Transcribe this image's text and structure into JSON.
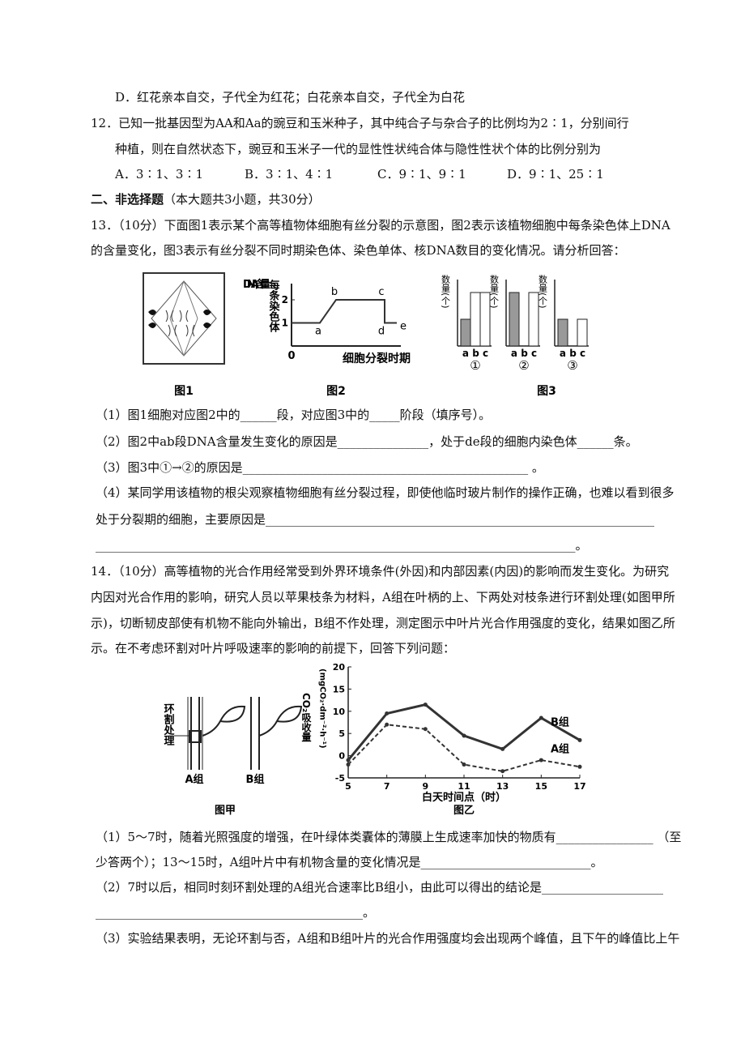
{
  "q11": {
    "option_d": "D．红花亲本自交，子代全为红花；白花亲本自交，子代全为白花"
  },
  "q12": {
    "stem": [
      "12．已知一批基因型为AA和Aa的豌豆和玉米种子，其中纯合子与杂合子的比例均为2∶1，分别间行",
      "种植，则在自然状态下，豌豆和玉米子一代的显性性状纯合体与隐性性状个体的比例分别为"
    ],
    "options": [
      "A．3∶1、3∶1",
      "B．3∶1、4∶1",
      "C．9∶1、9∶1",
      "D．9∶1、25∶1"
    ]
  },
  "section2": {
    "title": "二、非选择题",
    "note": "（本大题共3小题，共30分）"
  },
  "q13": {
    "stem": [
      "13．（10分）下面图1表示某个高等植物体细胞有丝分裂的示意图，图2表示该植物细胞中每条染色体上DNA",
      "的含量变化，图3表示有丝分裂不同时期染色体、染色单体、核DNA数目的变化情况。请分析回答："
    ],
    "fig1": {
      "caption": "图1"
    },
    "fig2": {
      "caption": "图2",
      "ylabel_a": "DNA含量",
      "ylabel_b": "每条染色体",
      "origin": "0",
      "xlabel": "细胞分裂时期",
      "yticks": [
        1,
        2
      ],
      "levels": [
        1,
        1,
        2,
        2,
        1,
        1
      ],
      "point_labels": [
        null,
        "a",
        "b",
        "c",
        "d",
        "e"
      ]
    },
    "fig3": {
      "caption": "图3",
      "ylabel": "数量(个)",
      "bar_labels": "a b c",
      "groups": [
        {
          "label": "①",
          "values": [
            1,
            2,
            2
          ]
        },
        {
          "label": "②",
          "values": [
            2,
            0,
            2
          ]
        },
        {
          "label": "③",
          "values": [
            1,
            0,
            1
          ]
        }
      ]
    },
    "parts": [
      "（1）图1细胞对应图2中的______段，对应图3中的_____阶段（填序号）。",
      "（2）图2中ab段DNA含量发生变化的原因是_______________，处于de段的细胞内染色体______条。",
      "（3）图3中①→②的原因是_______________________________________________ 。",
      "（4）某同学用该植物的根尖观察植物细胞有丝分裂过程，即使他临时玻片制作的操作正确，也难以看到很多",
      "处于分裂期的细胞，主要原因是________________________________________________________________",
      "_______________________________________________________________________________。"
    ]
  },
  "q14": {
    "stem": [
      "14．（10分）高等植物的光合作用经常受到外界环境条件(外因)和内部因素(内因)的影响而发生变化。为研究",
      "内因对光合作用的影响，研究人员以苹果枝条为材料，A组在叶柄的上、下两处对枝条进行环割处理(如图甲所",
      "示)，切断韧皮部使有机物不能向外输出，B组不作处理，测定图示中叶片光合作用强度的变化，结果如图乙所",
      "示。在不考虑环割对叶片呼吸速率的影响的前提下，回答下列问题："
    ],
    "fig_jia": {
      "caption": "图甲",
      "label": "环割处理",
      "group_a": "A组",
      "group_b": "B组"
    },
    "fig_yi": {
      "caption": "图乙",
      "ylabel": "CO₂吸收量",
      "yunit": "(mgCO₂·dm⁻²·h⁻¹)",
      "xlabel": "白天时间点（时）",
      "x": [
        5,
        7,
        9,
        11,
        13,
        15,
        17
      ],
      "xlim": [
        5,
        17
      ],
      "ylim": [
        -5,
        20
      ],
      "yticks": [
        20,
        15,
        10,
        5,
        0,
        -5
      ],
      "series": [
        {
          "name": "B组",
          "values": [
            -1,
            9.5,
            11.5,
            4.5,
            1.5,
            8.5,
            3.5
          ]
        },
        {
          "name": "A组",
          "values": [
            -2,
            7,
            6,
            -2,
            -3.5,
            -1,
            -2.5
          ]
        }
      ]
    },
    "parts": [
      "（1）5～7时，随着光照强度的增强，在叶绿体类囊体的薄膜上生成速率加快的物质有________________  （至",
      "少答两个）；13～15时，A组叶片中有机物含量的变化情况是____________________________。",
      "（2）7时以后，相同时刻环割处理的A组光合速率比B组小，由此可以得出的结论是____________________",
      "____________________________________________。",
      "（3）实验结果表明，无论环割与否，A组和B组叶片的光合作用强度均会出现两个峰值，且下午的峰值比上午"
    ]
  }
}
